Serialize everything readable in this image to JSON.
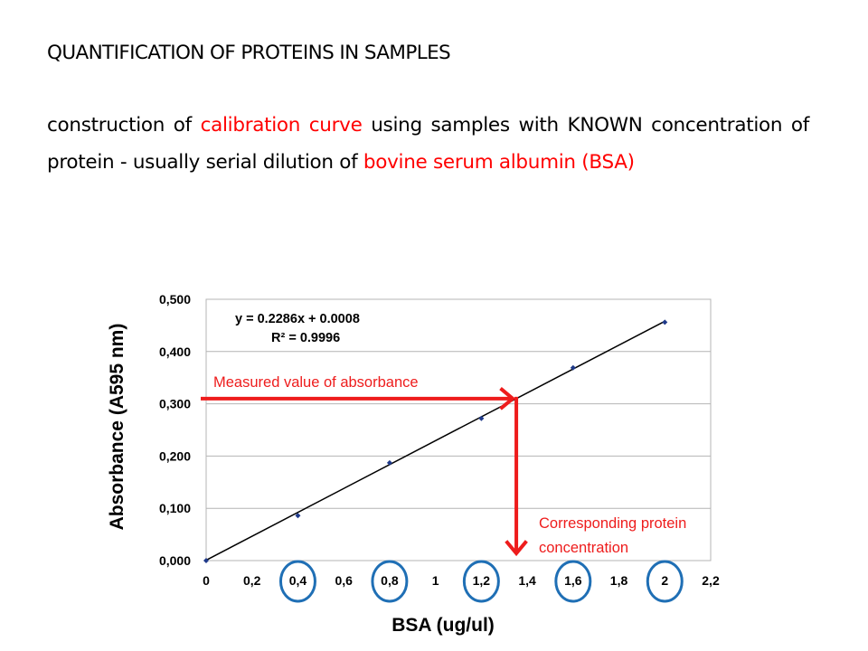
{
  "slide": {
    "title": "QUANTIFICATION OF PROTEINS IN SAMPLES",
    "body": {
      "t1": "construction of ",
      "h1": "calibration curve",
      "t2": " using samples with KNOWN concentration of protein - usually serial dilution of ",
      "h2": "bovine serum albumin (BSA)"
    },
    "highlight_color": "#ff0000"
  },
  "chart_data": {
    "type": "scatter",
    "xlabel": "BSA (ug/ul)",
    "ylabel": "Absorbance (A595 nm)",
    "xlim": [
      0,
      2.2
    ],
    "ylim": [
      0,
      0.5
    ],
    "x_ticks": [
      "0",
      "0,2",
      "0,4",
      "0,6",
      "0,8",
      "1",
      "1,2",
      "1,4",
      "1,6",
      "1,8",
      "2",
      "2,2"
    ],
    "y_ticks": [
      "0,000",
      "0,100",
      "0,200",
      "0,300",
      "0,400",
      "0,500"
    ],
    "grid": "horizontal",
    "series": [
      {
        "x": [
          0,
          0.4,
          0.8,
          1.2,
          1.6,
          2.0
        ],
        "y": [
          0.0,
          0.086,
          0.187,
          0.272,
          0.369,
          0.456
        ],
        "marker_color": "#1f3a8a"
      }
    ],
    "trendline": {
      "slope": 0.2286,
      "intercept": 0.0008,
      "x_range": [
        0,
        2.0
      ]
    },
    "equation": "y = 0.2286x + 0.0008",
    "r_squared": "R² = 0.9996",
    "circled_ticks": [
      0.4,
      0.8,
      1.2,
      1.6,
      2.0
    ],
    "circle_color": "#1f6fb5",
    "annotations": {
      "measured": {
        "label": "Measured value of absorbance",
        "y": 0.31
      },
      "result": {
        "line1": "Corresponding protein",
        "line2": "concentration"
      },
      "color": "#ee1c1c"
    }
  }
}
